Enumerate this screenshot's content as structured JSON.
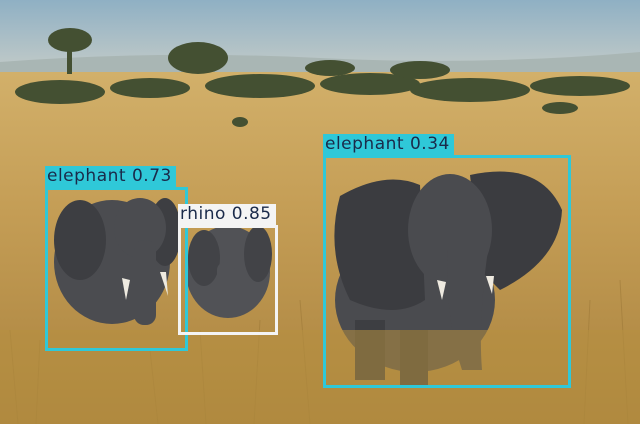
{
  "scene": {
    "description_icon": "savanna-photo",
    "palette": {
      "sky": "#9fb8c8",
      "horizon": "#b7c4c8",
      "grass_far": "#c9a664",
      "grass_near": "#b88f45",
      "trees": "#3f4a2f",
      "elephant": "#4b4c50",
      "elephant_shadow": "#36373b"
    }
  },
  "detections": [
    {
      "label": "elephant",
      "score": "0.73",
      "text": "elephant  0.73",
      "color": "#2fc8d8",
      "text_color": "#1a2a4a"
    },
    {
      "label": "rhino",
      "score": "0.85",
      "text": "rhino  0.85",
      "color": "#f4f4f4",
      "text_color": "#1a2a4a"
    },
    {
      "label": "elephant",
      "score": "0.34",
      "text": "elephant  0.34",
      "color": "#2fc8d8",
      "text_color": "#1a2a4a"
    }
  ]
}
